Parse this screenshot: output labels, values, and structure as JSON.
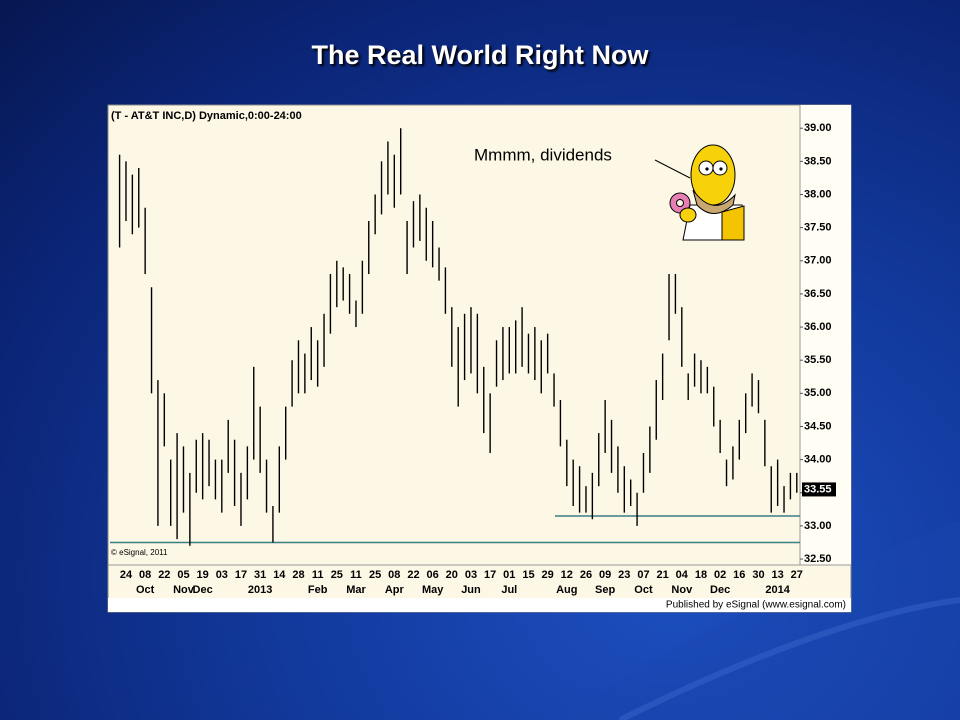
{
  "slide_title": "The Real World Right Now",
  "chart_data": {
    "type": "range-bar",
    "title": "(T - AT&T INC,D) Dynamic,0:00-24:00",
    "copyright": "© eSignal, 2011",
    "footer": "Published by eSignal (www.esignal.com)",
    "annotation": "Mmmm, dividends",
    "categories": [
      null,
      "24",
      null,
      null,
      "08",
      null,
      null,
      "22",
      null,
      null,
      "05",
      null,
      null,
      "19",
      null,
      null,
      "03",
      null,
      null,
      "17",
      null,
      null,
      "31",
      null,
      null,
      "14",
      null,
      null,
      "28",
      null,
      null,
      "11",
      null,
      null,
      "25",
      null,
      null,
      "11",
      null,
      null,
      "25",
      null,
      null,
      "08",
      null,
      null,
      "22",
      null,
      null,
      "06",
      null,
      null,
      "20",
      null,
      null,
      "03",
      null,
      null,
      "17",
      null,
      null,
      "01",
      null,
      null,
      "15",
      null,
      null,
      "29",
      null,
      null,
      "12",
      null,
      null,
      "26",
      null,
      null,
      "09",
      null,
      null,
      "23",
      null,
      null,
      "07",
      null,
      null,
      "21",
      null,
      null,
      "04",
      null,
      null,
      "18",
      null,
      null,
      "02",
      null,
      null,
      "16",
      null,
      null,
      "30",
      null,
      null,
      "13",
      null,
      null,
      "27"
    ],
    "months": [
      null,
      "Oct",
      null,
      "Nov",
      "Dec",
      null,
      null,
      "2013",
      null,
      null,
      "Feb",
      null,
      "Mar",
      null,
      "Apr",
      null,
      "May",
      null,
      "Jun",
      null,
      "Jul",
      null,
      null,
      "Aug",
      null,
      "Sep",
      null,
      "Oct",
      null,
      "Nov",
      null,
      "Dec",
      null,
      null,
      "2014",
      null
    ],
    "highs": [
      38.6,
      38.5,
      38.3,
      38.4,
      37.8,
      36.6,
      35.2,
      35.0,
      34.0,
      34.4,
      34.2,
      33.8,
      34.3,
      34.4,
      34.3,
      34.0,
      34.0,
      34.6,
      34.3,
      33.8,
      34.2,
      35.4,
      34.8,
      34.0,
      33.3,
      34.2,
      34.8,
      35.5,
      35.8,
      35.6,
      36.0,
      35.8,
      36.2,
      36.8,
      37.0,
      36.9,
      36.8,
      36.4,
      37.0,
      37.6,
      38.0,
      38.5,
      38.8,
      38.6,
      39.0,
      37.6,
      37.9,
      38.0,
      37.8,
      37.6,
      37.2,
      36.9,
      36.3,
      36.0,
      36.2,
      36.3,
      36.2,
      35.4,
      35.0,
      35.8,
      36.0,
      36.0,
      36.1,
      36.3,
      35.9,
      36.0,
      35.8,
      35.9,
      35.3,
      34.9,
      34.3,
      34.0,
      33.9,
      33.6,
      33.8,
      34.4,
      34.9,
      34.6,
      34.2,
      33.9,
      33.7,
      33.5,
      34.1,
      34.5,
      35.2,
      35.6,
      36.8,
      36.8,
      36.3,
      35.3,
      35.6,
      35.5,
      35.4,
      35.1,
      34.6,
      34.0,
      34.2,
      34.6,
      35.0,
      35.3,
      35.2,
      34.6,
      33.9,
      34.0,
      33.6,
      33.8,
      33.8
    ],
    "lows": [
      37.2,
      37.6,
      37.4,
      37.5,
      36.8,
      35.0,
      33.0,
      34.2,
      33.0,
      32.8,
      33.2,
      32.7,
      33.5,
      33.4,
      33.6,
      33.4,
      33.2,
      33.8,
      33.3,
      33.0,
      33.4,
      34.0,
      33.8,
      33.2,
      32.75,
      33.2,
      34.0,
      34.8,
      35.0,
      35.0,
      35.2,
      35.1,
      35.4,
      35.9,
      36.3,
      36.4,
      36.2,
      36.0,
      36.2,
      36.8,
      37.4,
      37.7,
      38.0,
      37.8,
      38.0,
      36.8,
      37.2,
      37.3,
      37.0,
      36.9,
      36.7,
      36.2,
      35.4,
      34.8,
      35.2,
      35.3,
      35.0,
      34.4,
      34.1,
      35.1,
      35.2,
      35.3,
      35.3,
      35.4,
      35.3,
      35.2,
      35.0,
      35.3,
      34.8,
      34.2,
      33.6,
      33.3,
      33.2,
      33.2,
      33.1,
      33.6,
      34.1,
      33.8,
      33.5,
      33.2,
      33.3,
      33.0,
      33.5,
      33.8,
      34.3,
      34.9,
      35.8,
      36.2,
      35.4,
      34.9,
      35.1,
      35.0,
      35.0,
      34.5,
      34.1,
      33.6,
      33.7,
      34.0,
      34.4,
      34.8,
      34.7,
      33.9,
      33.2,
      33.3,
      33.2,
      33.4,
      33.5
    ],
    "bar_color": "#000000",
    "last_price": {
      "value": 33.55,
      "label": "33.55"
    },
    "hlines": [
      {
        "value": 32.75,
        "color": "#3a7f86"
      },
      {
        "value": 33.15,
        "color": "#3a7f86"
      }
    ],
    "ylim": [
      32.41,
      39.32
    ],
    "yticks": [
      {
        "value": 32.5,
        "label": "32.50"
      },
      {
        "value": 33.0,
        "label": "33.00"
      },
      {
        "value": 33.5,
        "label": "33.50"
      },
      {
        "value": 34.0,
        "label": "34.00"
      },
      {
        "value": 34.5,
        "label": "34.50"
      },
      {
        "value": 35.0,
        "label": "35.00"
      },
      {
        "value": 35.5,
        "label": "35.50"
      },
      {
        "value": 36.0,
        "label": "36.00"
      },
      {
        "value": 36.5,
        "label": "36.50"
      },
      {
        "value": 37.0,
        "label": "37.00"
      },
      {
        "value": 37.5,
        "label": "37.50"
      },
      {
        "value": 38.0,
        "label": "38.00"
      },
      {
        "value": 38.5,
        "label": "38.50"
      },
      {
        "value": 39.0,
        "label": "39.00"
      }
    ]
  }
}
